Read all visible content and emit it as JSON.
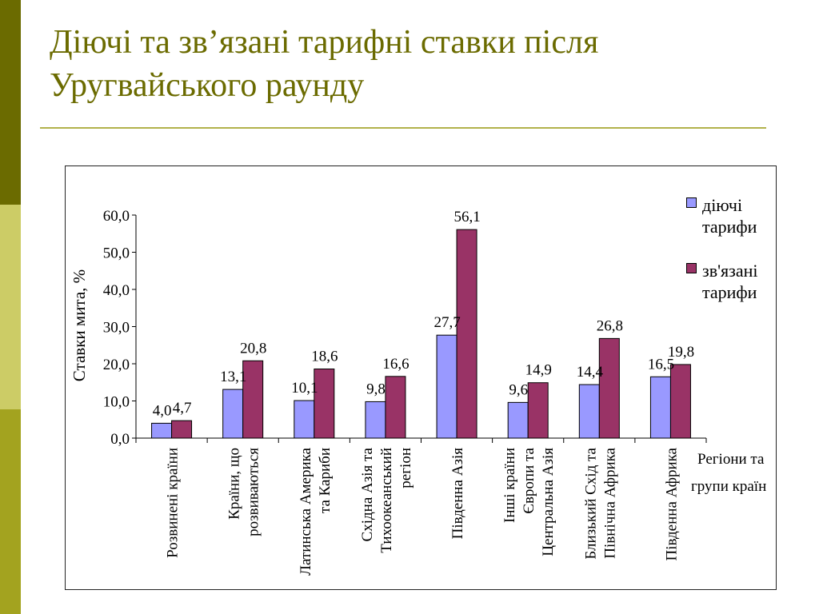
{
  "title": "Діючі та зв’язані тарифні ставки після Уругвайського раунду",
  "colors": {
    "side_dark": "#6b6b00",
    "side_light": "#cccc66",
    "side_mid": "#a3a31f",
    "title": "#6b6b00"
  },
  "chart_data": {
    "type": "bar",
    "categories": [
      "Розвинені країни",
      "Країни, що розвиваються",
      "Латинська Америка та Кариби",
      "Східна Азія та Тихоокеанський регіон",
      "Південна Азія",
      "Інші країни Європи та Центральна Азія",
      "Близький Схід та Північна Африка",
      "Південна Африка"
    ],
    "series": [
      {
        "name": "діючі тарифи",
        "color": "#9999ff",
        "values": [
          4.0,
          13.1,
          10.1,
          9.8,
          27.7,
          9.6,
          14.4,
          16.5
        ],
        "labels": [
          "4,0",
          "13,1",
          "10,1",
          "9,8",
          "27,7",
          "9,6",
          "14,4",
          "16,5"
        ]
      },
      {
        "name": "зв'язані тарифи",
        "color": "#993366",
        "values": [
          4.7,
          20.8,
          18.6,
          16.6,
          56.1,
          14.9,
          26.8,
          19.8
        ],
        "labels": [
          "4,7",
          "20,8",
          "18,6",
          "16,6",
          "56,1",
          "14,9",
          "26,8",
          "19,8"
        ]
      }
    ],
    "ylabel": "Ставки мита, %",
    "xlabel": "Регіони та групи країн",
    "ylim": [
      0,
      60
    ],
    "yticks": [
      0,
      10,
      20,
      30,
      40,
      50,
      60
    ],
    "ytick_labels": [
      "0,0",
      "10,0",
      "20,0",
      "30,0",
      "40,0",
      "50,0",
      "60,0"
    ],
    "legend_position": "right"
  }
}
